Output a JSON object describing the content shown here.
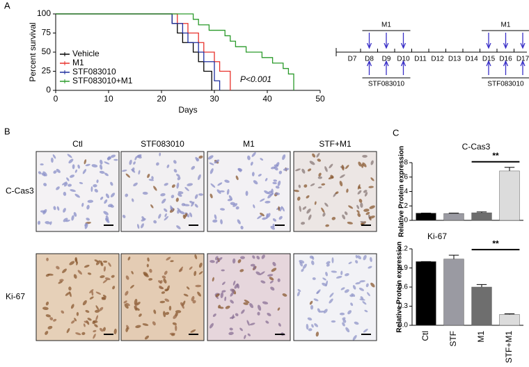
{
  "panel_labels": [
    "A",
    "B",
    "C"
  ],
  "timeline": {
    "days": [
      "D7",
      "D8",
      "D9",
      "D10",
      "D11",
      "D12",
      "D13",
      "D14",
      "D15",
      "D16",
      "D17"
    ],
    "upper_labels": [
      "M1",
      "M1"
    ],
    "lower_labels": [
      "STF083010",
      "STF083010"
    ]
  },
  "histology": {
    "columns": [
      "Ctl",
      "STF083010",
      "M1",
      "STF+M1"
    ],
    "rows": [
      "C-Cas3",
      "Ki-67"
    ]
  },
  "chart_data": [
    {
      "type": "step",
      "xlabel": "Days",
      "ylabel": "Percent survival",
      "annotation": "P<0.001",
      "xlim": [
        0,
        50
      ],
      "xticks": [
        0,
        10,
        20,
        30,
        40,
        50
      ],
      "ylim": [
        0,
        100
      ],
      "yticks": [
        0,
        25,
        50,
        75,
        100
      ],
      "series": [
        {
          "name": "Vehicle",
          "color": "#000000",
          "x": [
            0,
            22,
            23,
            24,
            26,
            27,
            28,
            29.5
          ],
          "values": [
            100,
            87.5,
            75,
            62.5,
            50,
            37.5,
            25,
            0
          ]
        },
        {
          "name": "M1",
          "color": "#e8302a",
          "x": [
            0,
            23,
            25,
            27,
            28,
            30,
            31,
            33
          ],
          "values": [
            100,
            87.5,
            75,
            62.5,
            50,
            37.5,
            25,
            0
          ]
        },
        {
          "name": "STF083010",
          "color": "#1e2e9e",
          "x": [
            0,
            22,
            24,
            25,
            27,
            28,
            30,
            31
          ],
          "values": [
            100,
            87.5,
            75,
            62.5,
            50,
            37.5,
            12.5,
            0
          ]
        },
        {
          "name": "STF083010+M1",
          "color": "#2a9a2a",
          "x": [
            0,
            26,
            27,
            29,
            32,
            33,
            34,
            36,
            39,
            41,
            43,
            44,
            45
          ],
          "values": [
            100,
            92.9,
            85.7,
            78.6,
            71.4,
            64.3,
            57.1,
            50,
            42.9,
            35.7,
            28.6,
            21.4,
            0
          ]
        }
      ]
    },
    {
      "type": "bar",
      "title": "C-Cas3",
      "ylabel": "Relative Protein expression",
      "annotation": "**",
      "ylim": [
        0,
        8
      ],
      "yticks": [
        0,
        2,
        4,
        6,
        8
      ],
      "values": [
        1,
        0.95,
        1.05,
        6.85
      ],
      "errors": [
        0,
        0.05,
        0.12,
        0.5
      ],
      "colors": [
        "#000000",
        "#9a9aa2",
        "#6e6e6e",
        "#dcdcdc"
      ]
    },
    {
      "type": "bar",
      "title": "Ki-67",
      "ylabel": "Relative Protein expression",
      "annotation": "**",
      "categories": [
        "Ctl",
        "STF",
        "M1",
        "STF+M1"
      ],
      "ylim": [
        0,
        1.2
      ],
      "yticks": [
        {
          "value": 0,
          "label": "0.0"
        },
        0.3,
        0.6,
        0.9,
        1.2
      ],
      "values": [
        1,
        1.04,
        0.6,
        0.17
      ],
      "errors": [
        0,
        0.06,
        0.04,
        0.01
      ],
      "colors": [
        "#000000",
        "#9a9aa2",
        "#6e6e6e",
        "#dcdcdc"
      ]
    }
  ]
}
